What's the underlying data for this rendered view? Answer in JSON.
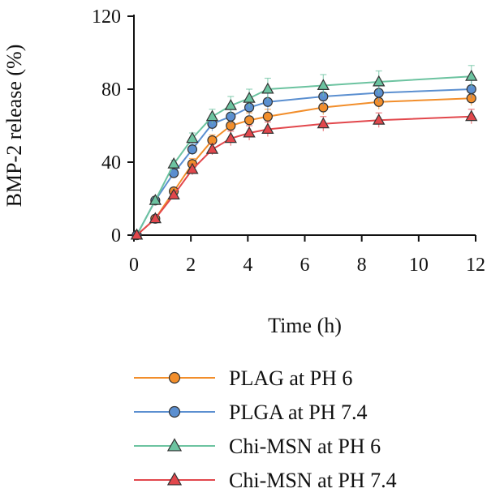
{
  "chart_data": {
    "type": "line",
    "title": "",
    "xlabel": "Time (h)",
    "ylabel": "BMP-2 release (%)",
    "xlim": [
      0,
      12
    ],
    "ylim": [
      0,
      120
    ],
    "xticks": [
      0,
      2,
      4,
      6,
      8,
      10,
      12
    ],
    "yticks": [
      0,
      40,
      80,
      120
    ],
    "xtick_labels": [
      "0",
      "2",
      "4",
      "6",
      "8",
      "10",
      "12"
    ],
    "ytick_labels": [
      "0",
      "40",
      "80",
      "120"
    ],
    "grid": false,
    "legend_position": "bottom",
    "x": [
      0.1,
      0.75,
      1.4,
      2.05,
      2.75,
      3.4,
      4.05,
      4.7,
      6.65,
      8.6,
      11.85
    ],
    "series": [
      {
        "name": "PLAG at PH 6",
        "marker": "circle",
        "color": "#f28e2b",
        "values": [
          0,
          9,
          24,
          39,
          52,
          60,
          63,
          65,
          70,
          73,
          75
        ],
        "errors": [
          0,
          1.5,
          2,
          3,
          3,
          4,
          4,
          4,
          4,
          4,
          4
        ]
      },
      {
        "name": "PLGA at PH 7.4",
        "marker": "circle",
        "color": "#5b8fd0",
        "values": [
          0,
          19,
          34,
          47,
          61,
          65,
          70,
          73,
          76,
          78,
          80
        ],
        "errors": [
          0,
          1.5,
          2,
          3,
          4,
          4,
          5,
          5,
          5,
          5,
          5
        ]
      },
      {
        "name": "Chi-MSN at PH 6",
        "marker": "triangle",
        "color": "#6cc3a0",
        "values": [
          0,
          19,
          39,
          53,
          65,
          71,
          75,
          80,
          82,
          84,
          87
        ],
        "errors": [
          0,
          1.5,
          2,
          3,
          4,
          5,
          5,
          6,
          6,
          6,
          6
        ]
      },
      {
        "name": "Chi-MSN at PH 7.4",
        "marker": "triangle",
        "color": "#e2474c",
        "values": [
          0,
          9,
          22,
          36,
          47,
          53,
          56,
          58,
          61,
          63,
          65
        ],
        "errors": [
          0,
          1.5,
          2,
          3,
          3,
          4,
          4,
          4,
          4,
          4,
          4
        ]
      }
    ]
  }
}
